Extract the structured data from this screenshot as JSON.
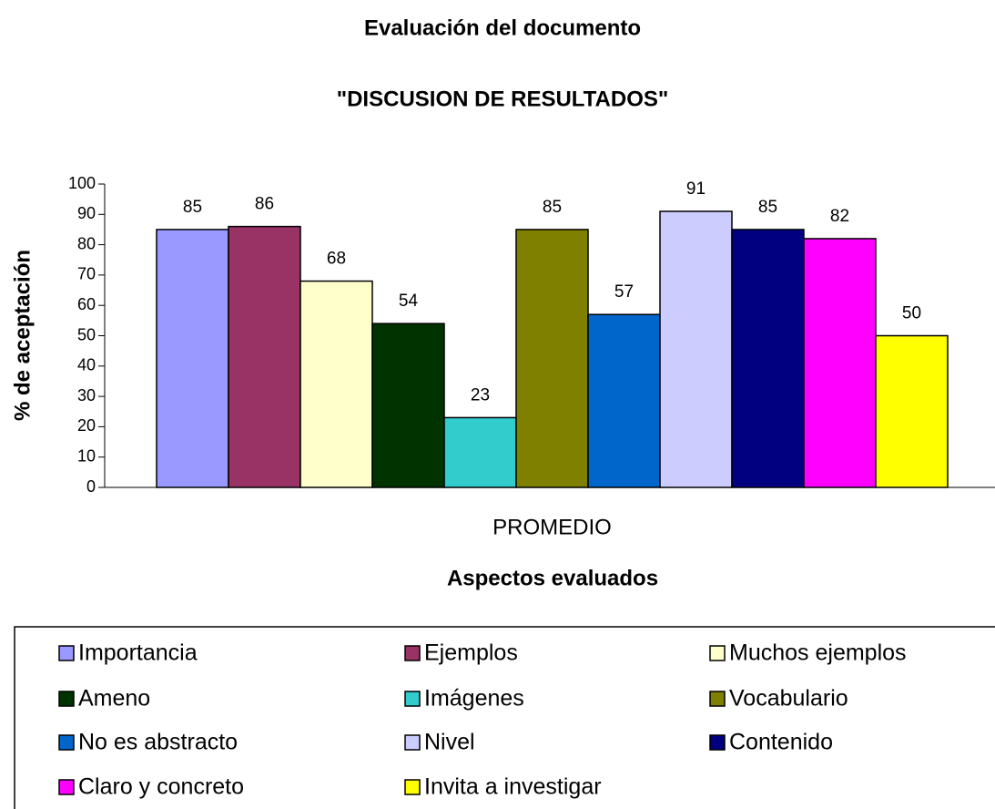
{
  "chart_data": {
    "type": "bar",
    "title": "Evaluación del documento",
    "subtitle": "\"DISCUSION DE RESULTADOS\"",
    "x_label": "Aspectos evaluados",
    "y_label": "% de aceptación",
    "categories": [
      "PROMEDIO"
    ],
    "series": [
      {
        "name": "Importancia",
        "color": "#9999ff",
        "values": [
          85
        ]
      },
      {
        "name": "Ejemplos",
        "color": "#993366",
        "values": [
          86
        ]
      },
      {
        "name": "Muchos ejemplos",
        "color": "#ffffcc",
        "values": [
          68
        ]
      },
      {
        "name": "Ameno",
        "color": "#003300",
        "values": [
          54
        ]
      },
      {
        "name": "Imágenes",
        "color": "#33cccc",
        "values": [
          23
        ]
      },
      {
        "name": "Vocabulario",
        "color": "#808000",
        "values": [
          85
        ]
      },
      {
        "name": "No es abstracto",
        "color": "#0066cc",
        "values": [
          57
        ]
      },
      {
        "name": "Nivel",
        "color": "#ccccff",
        "values": [
          91
        ]
      },
      {
        "name": "Contenido",
        "color": "#000080",
        "values": [
          85
        ]
      },
      {
        "name": "Claro y concreto",
        "color": "#ff00ff",
        "values": [
          82
        ]
      },
      {
        "name": "Invita a investigar",
        "color": "#ffff00",
        "values": [
          50
        ]
      }
    ],
    "ylim": [
      0,
      100
    ],
    "yticks": [
      0,
      10,
      20,
      30,
      40,
      50,
      60,
      70,
      80,
      90,
      100
    ],
    "grid": false,
    "legend": "bottom"
  }
}
